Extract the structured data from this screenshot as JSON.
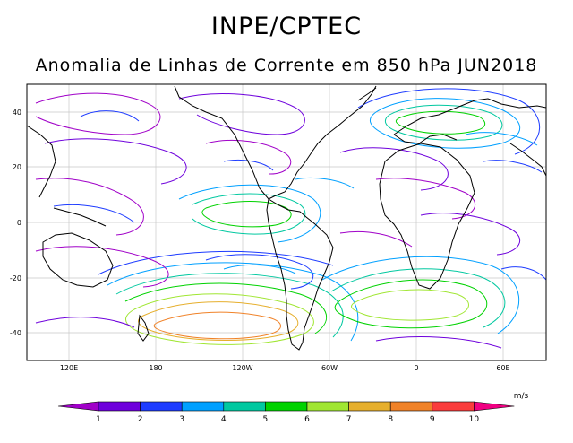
{
  "header": {
    "title": "INPE/CPTEC",
    "subtitle": "Anomalia de Linhas de Corrente em 850 hPa JUN2018"
  },
  "map": {
    "lon_labels": [
      "120E",
      "180",
      "120W",
      "60W",
      "0",
      "60E"
    ],
    "lat_labels": [
      "40",
      "20",
      "0",
      "-20",
      "-40"
    ],
    "coastline_color": "#000000",
    "grid_color": "#c8c8c8"
  },
  "colorbar": {
    "unit": "m/s",
    "ticks": [
      "1",
      "2",
      "3",
      "4",
      "5",
      "6",
      "7",
      "8",
      "9",
      "10"
    ],
    "colors": [
      "#a000c8",
      "#6e00dc",
      "#1e3cff",
      "#00a0ff",
      "#00c8a0",
      "#00d200",
      "#a0e632",
      "#e6af2d",
      "#f08228",
      "#fa3c3c",
      "#f00082"
    ]
  }
}
